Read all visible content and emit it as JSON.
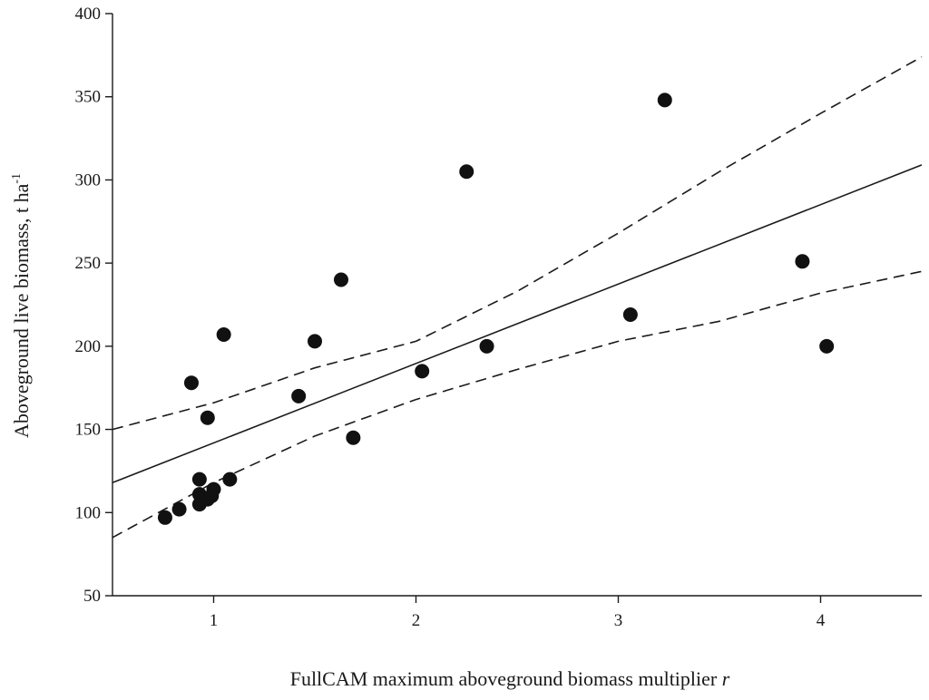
{
  "chart_data": {
    "type": "scatter",
    "xlabel_main": "FullCAM maximum aboveground biomass multiplier ",
    "xlabel_italic": "r",
    "ylabel_main": "Aboveground live biomass, t ha",
    "ylabel_sup": "-1",
    "xlim": [
      0.5,
      4.5
    ],
    "ylim": [
      50,
      400
    ],
    "x_ticks": [
      1,
      2,
      3,
      4
    ],
    "y_ticks": [
      50,
      100,
      150,
      200,
      250,
      300,
      350,
      400
    ],
    "grid": false,
    "points": [
      {
        "x": 0.76,
        "y": 97
      },
      {
        "x": 0.83,
        "y": 102
      },
      {
        "x": 0.89,
        "y": 178
      },
      {
        "x": 0.93,
        "y": 120
      },
      {
        "x": 0.93,
        "y": 111
      },
      {
        "x": 0.93,
        "y": 105
      },
      {
        "x": 0.97,
        "y": 157
      },
      {
        "x": 0.97,
        "y": 108
      },
      {
        "x": 0.99,
        "y": 110
      },
      {
        "x": 1.0,
        "y": 114
      },
      {
        "x": 1.05,
        "y": 207
      },
      {
        "x": 1.08,
        "y": 120
      },
      {
        "x": 1.42,
        "y": 170
      },
      {
        "x": 1.5,
        "y": 203
      },
      {
        "x": 1.63,
        "y": 240
      },
      {
        "x": 1.69,
        "y": 145
      },
      {
        "x": 2.03,
        "y": 185
      },
      {
        "x": 2.25,
        "y": 305
      },
      {
        "x": 2.35,
        "y": 200
      },
      {
        "x": 3.06,
        "y": 219
      },
      {
        "x": 3.23,
        "y": 348
      },
      {
        "x": 3.91,
        "y": 251
      },
      {
        "x": 4.03,
        "y": 200
      }
    ],
    "regression_line": {
      "x": [
        0.5,
        4.5
      ],
      "y": [
        118,
        309
      ]
    },
    "upper_confidence": {
      "x": [
        0.5,
        1.0,
        1.5,
        2.0,
        2.5,
        3.0,
        3.5,
        4.0,
        4.5
      ],
      "y": [
        150,
        166,
        187,
        203,
        233,
        268,
        305,
        340,
        374
      ]
    },
    "lower_confidence": {
      "x": [
        0.5,
        1.0,
        1.5,
        2.0,
        2.5,
        3.0,
        3.5,
        4.0,
        4.5
      ],
      "y": [
        85,
        118,
        146,
        168,
        186,
        203,
        215,
        232,
        245
      ]
    }
  }
}
